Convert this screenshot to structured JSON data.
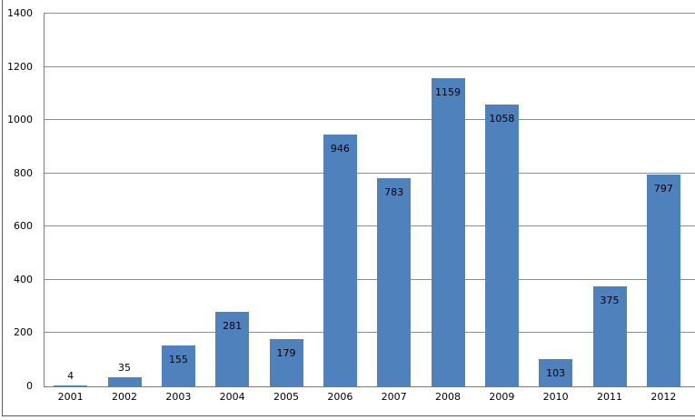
{
  "chart_data": {
    "type": "bar",
    "title": "",
    "xlabel": "",
    "ylabel": "",
    "categories": [
      "2001",
      "2002",
      "2003",
      "2004",
      "2005",
      "2006",
      "2007",
      "2008",
      "2009",
      "2010",
      "2011",
      "2012"
    ],
    "values": [
      4,
      35,
      155,
      281,
      179,
      946,
      783,
      1159,
      1058,
      103,
      375,
      797
    ],
    "data_labels": [
      "4",
      "35",
      "155",
      "281",
      "179",
      "946",
      "783",
      "1159",
      "1058",
      "103",
      "375",
      "797"
    ],
    "ylim": [
      0,
      1400
    ],
    "yticks": [
      "0",
      "200",
      "400",
      "600",
      "800",
      "1000",
      "1200",
      "1400"
    ],
    "ytick_values": [
      0,
      200,
      400,
      600,
      800,
      1000,
      1200,
      1400
    ],
    "grid": true,
    "legend": false,
    "series_name": ""
  },
  "colors": {
    "bar": "#4F81BD",
    "gridline": "#8E8E8E",
    "axis": "#7A7A7A",
    "frame": "#595959",
    "text": "#000000",
    "background": "#FFFFFF"
  }
}
